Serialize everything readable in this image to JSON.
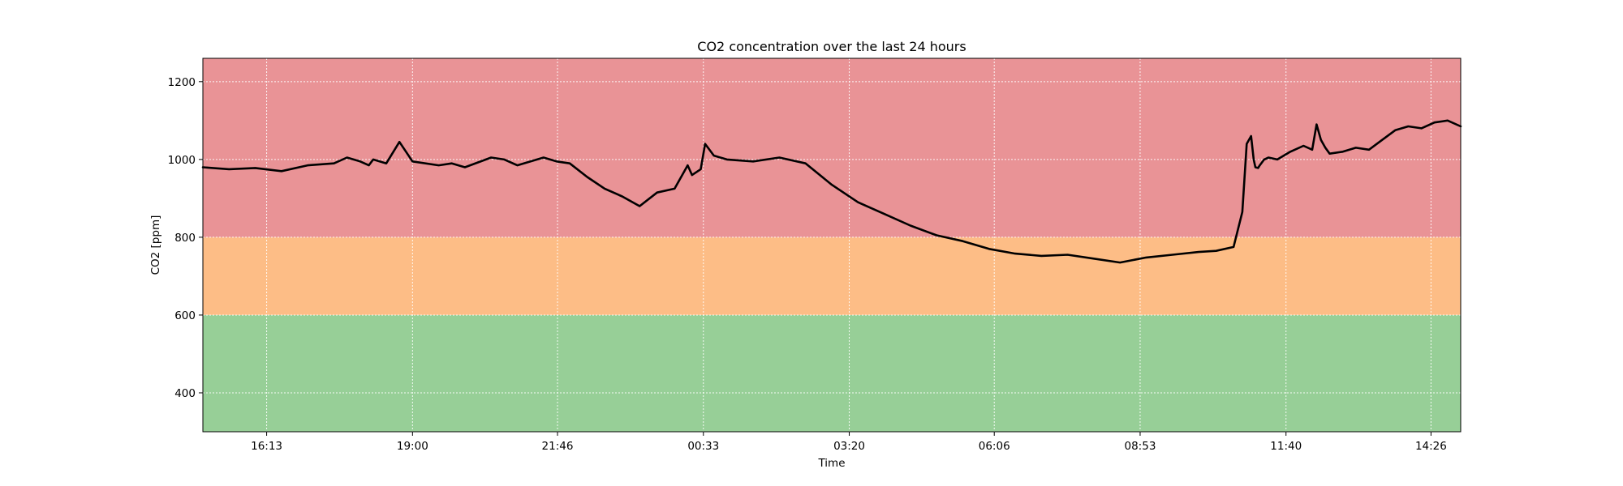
{
  "chart_data": {
    "type": "line",
    "title": "CO2 concentration over the last 24 hours",
    "xlabel": "Time",
    "ylabel": "CO2 [ppm]",
    "ylim": [
      300,
      1260
    ],
    "xlim": [
      "15:00",
      "15:00"
    ],
    "grid": true,
    "yticks": [
      400,
      600,
      800,
      1000,
      1200
    ],
    "xticks": [
      "16:13",
      "19:00",
      "21:46",
      "00:33",
      "03:20",
      "06:06",
      "08:53",
      "11:40",
      "14:26"
    ],
    "bands": [
      {
        "from": 300,
        "to": 600,
        "color": "#97cf97"
      },
      {
        "from": 600,
        "to": 800,
        "color": "#fdbd86"
      },
      {
        "from": 800,
        "to": 1260,
        "color": "#e99396"
      }
    ],
    "line_color": "#000000",
    "series": [
      {
        "x": [
          "15:00",
          "15:30",
          "16:00",
          "16:30",
          "17:00",
          "17:30",
          "17:45",
          "18:00",
          "18:10",
          "18:15",
          "18:30",
          "18:45",
          "19:00",
          "19:30",
          "19:45",
          "20:00",
          "20:30",
          "20:45",
          "21:00",
          "21:30",
          "21:45",
          "22:00",
          "22:20",
          "22:40",
          "23:00",
          "23:20",
          "23:40",
          "24:00",
          "00:15",
          "00:20",
          "00:30",
          "00:35",
          "00:45",
          "01:00",
          "01:30",
          "02:00",
          "02:30",
          "03:00",
          "03:30",
          "04:00",
          "04:30",
          "05:00",
          "05:30",
          "06:00",
          "06:30",
          "07:00",
          "07:30",
          "08:00",
          "08:30",
          "09:00",
          "09:30",
          "10:00",
          "10:20",
          "10:40",
          "10:50",
          "10:55",
          "11:00",
          "11:03",
          "11:05",
          "11:08",
          "11:10",
          "11:15",
          "11:20",
          "11:30",
          "11:45",
          "12:00",
          "12:10",
          "12:15",
          "12:20",
          "12:25",
          "12:30",
          "12:45",
          "13:00",
          "13:15",
          "13:30",
          "13:45",
          "14:00",
          "14:15",
          "14:30",
          "14:45",
          "15:00"
        ],
        "y": [
          980,
          975,
          978,
          970,
          985,
          990,
          1005,
          995,
          985,
          1000,
          990,
          1045,
          995,
          985,
          990,
          980,
          1005,
          1000,
          985,
          1005,
          995,
          990,
          955,
          925,
          905,
          880,
          915,
          925,
          985,
          960,
          975,
          1040,
          1010,
          1000,
          995,
          1005,
          990,
          935,
          890,
          860,
          830,
          805,
          790,
          770,
          758,
          752,
          755,
          745,
          735,
          748,
          755,
          762,
          765,
          775,
          865,
          1040,
          1060,
          1000,
          980,
          978,
          985,
          1000,
          1005,
          1000,
          1020,
          1035,
          1025,
          1090,
          1050,
          1030,
          1015,
          1020,
          1030,
          1025,
          1050,
          1075,
          1085,
          1080,
          1095,
          1100,
          1085
        ]
      }
    ]
  }
}
